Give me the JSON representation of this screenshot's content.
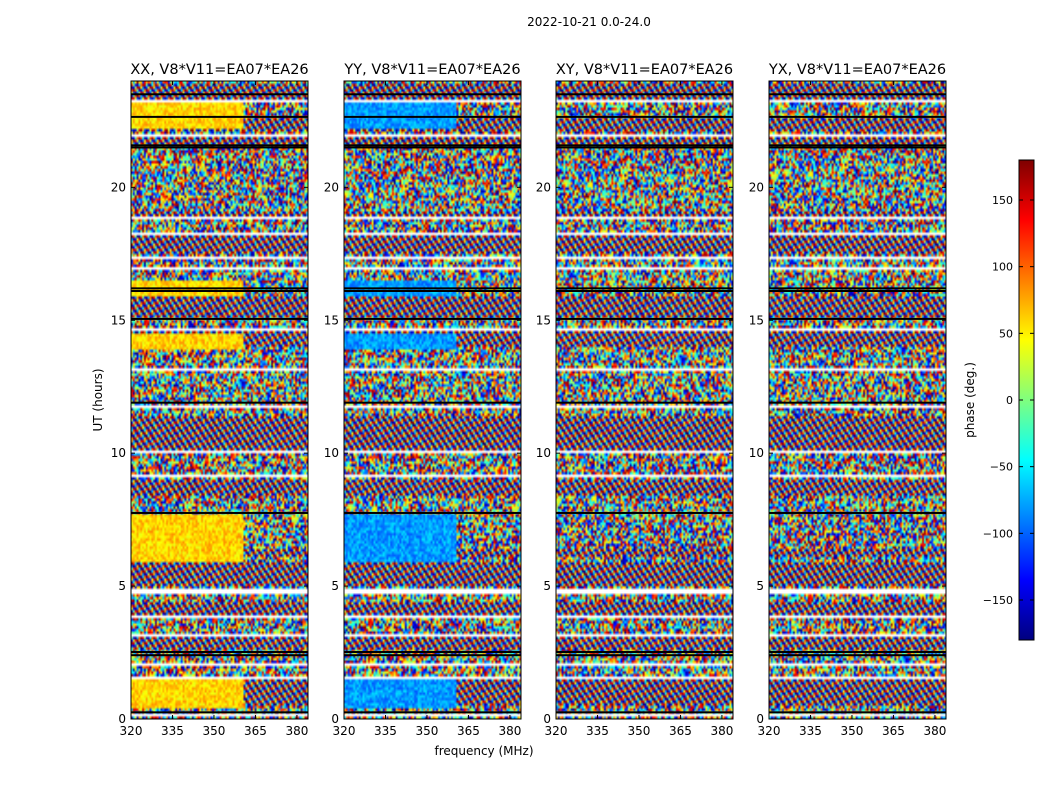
{
  "figure": {
    "suptitle": "2022-10-21 0.0-24.0",
    "xlabel": "frequency (MHz)",
    "ylabel": "UT (hours)"
  },
  "colorbar": {
    "label": "phase (deg.)",
    "range": [
      -180,
      180
    ],
    "ticks": [
      150,
      100,
      50,
      0,
      -50,
      -100,
      -150
    ],
    "tick_labels": [
      "150",
      "100",
      "50",
      "0",
      "−50",
      "−100",
      "−150"
    ],
    "colormap": "jet",
    "colors": [
      "#00007f",
      "#0000ff",
      "#007fff",
      "#00ffff",
      "#7fff7f",
      "#ffff00",
      "#ff7f00",
      "#ff0000",
      "#7f0000"
    ]
  },
  "chart_data": [
    {
      "type": "heatmap",
      "title": "XX, V8*V11=EA07*EA26",
      "xlim": [
        320,
        384
      ],
      "ylim": [
        0,
        24
      ],
      "xticks": [
        320,
        335,
        350,
        365,
        380
      ],
      "yticks": [
        0,
        5,
        10,
        15,
        20
      ],
      "bright_band_phase_deg": 60,
      "bright_band_edge_MHz": 361
    },
    {
      "type": "heatmap",
      "title": "YY, V8*V11=EA07*EA26",
      "xlim": [
        320,
        384
      ],
      "ylim": [
        0,
        24
      ],
      "xticks": [
        320,
        335,
        350,
        365,
        380
      ],
      "yticks": [
        0,
        5,
        10,
        15,
        20
      ],
      "bright_band_phase_deg": -80,
      "bright_band_edge_MHz": 361
    },
    {
      "type": "heatmap",
      "title": "XY, V8*V11=EA07*EA26",
      "xlim": [
        320,
        384
      ],
      "ylim": [
        0,
        24
      ],
      "xticks": [
        320,
        335,
        350,
        365,
        380
      ],
      "yticks": [
        0,
        5,
        10,
        15,
        20
      ],
      "bright_band_phase_deg": null,
      "bright_band_edge_MHz": null
    },
    {
      "type": "heatmap",
      "title": "YX, V8*V11=EA07*EA26",
      "xlim": [
        320,
        384
      ],
      "ylim": [
        0,
        24
      ],
      "xticks": [
        320,
        335,
        350,
        365,
        380
      ],
      "yticks": [
        0,
        5,
        10,
        15,
        20
      ],
      "bright_band_phase_deg": null,
      "bright_band_edge_MHz": null
    }
  ],
  "time_structure": {
    "gaps_hours": [
      [
        0.1,
        0.18
      ],
      [
        0.35,
        0.4
      ],
      [
        1.55,
        1.62
      ],
      [
        2.05,
        2.12
      ],
      [
        3.12,
        3.18
      ],
      [
        3.8,
        3.86
      ],
      [
        4.45,
        4.5
      ],
      [
        4.72,
        4.9
      ],
      [
        5.95,
        6.0
      ],
      [
        8.3,
        8.35
      ],
      [
        9.1,
        9.15
      ],
      [
        10.0,
        10.05
      ],
      [
        11.75,
        11.82
      ],
      [
        13.1,
        13.16
      ],
      [
        14.65,
        14.72
      ],
      [
        16.95,
        17.0
      ],
      [
        17.35,
        17.42
      ],
      [
        18.25,
        18.3
      ],
      [
        18.8,
        18.86
      ],
      [
        19.2,
        19.25
      ],
      [
        21.95,
        22.05
      ],
      [
        23.25,
        23.32
      ]
    ],
    "black_separators_hours": [
      0.25,
      2.4,
      2.52,
      7.75,
      11.9,
      15.05,
      16.1,
      16.2,
      21.5,
      21.58,
      22.65,
      23.5
    ],
    "dense_scan_bands_hours": [
      [
        0.5,
        1.45
      ],
      [
        2.6,
        3.1
      ],
      [
        3.9,
        4.4
      ],
      [
        5.0,
        5.9
      ],
      [
        6.1,
        6.4
      ],
      [
        8.4,
        9.0
      ],
      [
        10.1,
        10.5
      ],
      [
        10.5,
        11.4
      ],
      [
        14.0,
        14.6
      ],
      [
        15.1,
        15.9
      ],
      [
        17.5,
        18.2
      ],
      [
        18.9,
        19.1
      ],
      [
        21.6,
        21.9
      ],
      [
        22.1,
        22.6
      ],
      [
        23.35,
        23.95
      ]
    ],
    "calibrator_intervals_hours": [
      [
        0.4,
        1.5
      ],
      [
        5.9,
        7.7
      ],
      [
        13.9,
        14.5
      ],
      [
        15.95,
        16.5
      ],
      [
        22.2,
        23.2
      ]
    ]
  }
}
